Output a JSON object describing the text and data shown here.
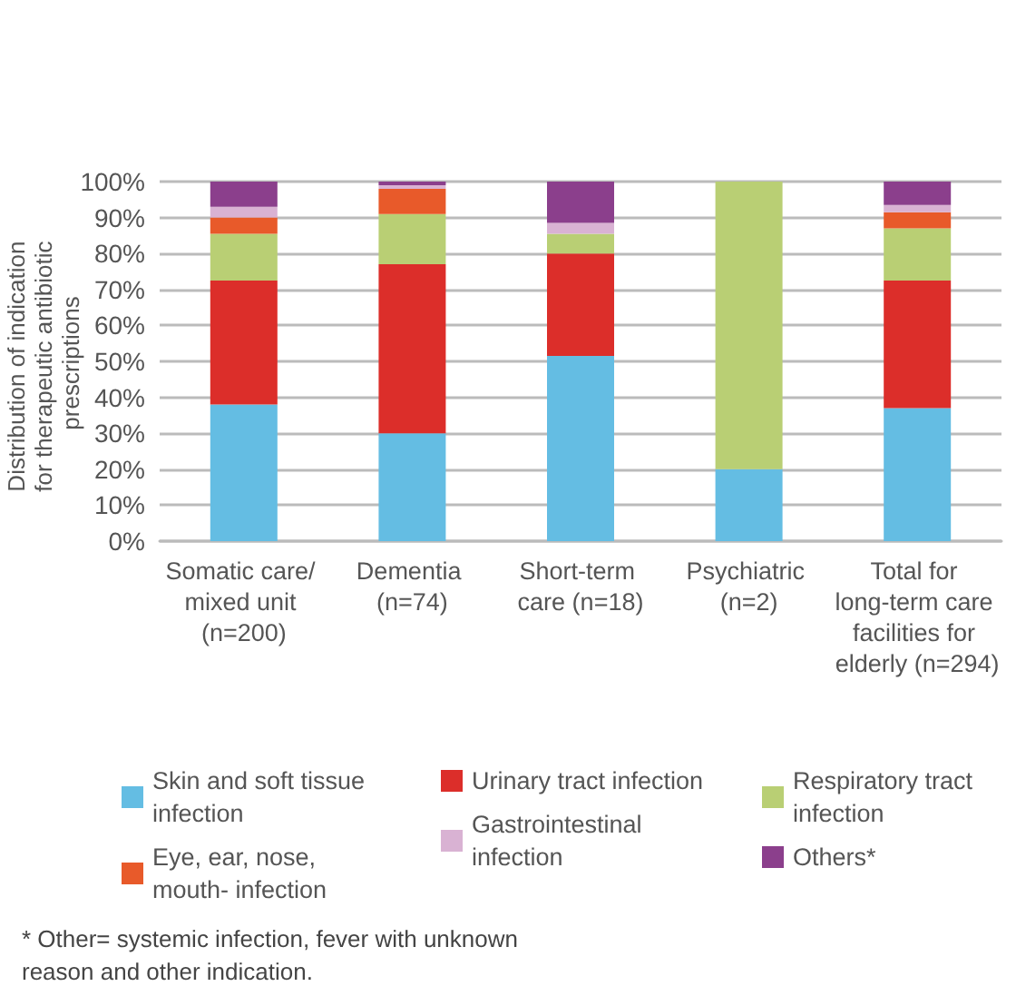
{
  "chart_data": {
    "type": "bar",
    "stacked": true,
    "ylabel": "Distribution of indication for therapeutic antibiotic prescriptions",
    "categories": [
      "Somatic care/ mixed unit (n=200)",
      "Dementia (n=74)",
      "Short-term care (n=18)",
      "Psychiatric (n=2)",
      "Total for long-term care facilities for elderly (n=294)"
    ],
    "series": [
      {
        "name": "Skin and soft tissue infection",
        "color": "#64bde3",
        "values": [
          38,
          30,
          51.5,
          20,
          37
        ]
      },
      {
        "name": "Urinary tract infection",
        "color": "#dc2e2a",
        "values": [
          34.5,
          47,
          28.5,
          0,
          35.5
        ]
      },
      {
        "name": "Respiratory tract infection",
        "color": "#b9cf74",
        "values": [
          13,
          14,
          5.5,
          80,
          14.5
        ]
      },
      {
        "name": "Eye, ear, nose, mouth- infection",
        "color": "#e85a2a",
        "values": [
          4.5,
          7,
          0,
          0,
          4.5
        ]
      },
      {
        "name": "Gastrointestinal infection",
        "color": "#d9b2d3",
        "values": [
          3,
          1,
          3,
          0,
          2
        ]
      },
      {
        "name": "Others*",
        "color": "#8b3f8c",
        "values": [
          7,
          1,
          11.5,
          0,
          6.5
        ]
      }
    ],
    "ylim": [
      0,
      100
    ],
    "yticks": [
      {
        "value": 0,
        "label": "0%"
      },
      {
        "value": 10,
        "label": "10%"
      },
      {
        "value": 20,
        "label": "20%"
      },
      {
        "value": 30,
        "label": "30%"
      },
      {
        "value": 40,
        "label": "40%"
      },
      {
        "value": 50,
        "label": "50%"
      },
      {
        "value": 60,
        "label": "60%"
      },
      {
        "value": 70,
        "label": "70%"
      },
      {
        "value": 80,
        "label": "80%"
      },
      {
        "value": 90,
        "label": "90%"
      },
      {
        "value": 100,
        "label": "100%"
      }
    ],
    "grid": "y",
    "legend": "bottom",
    "annotations": [
      "* Other= systemic infection, fever with unknown reason and other indication."
    ]
  }
}
